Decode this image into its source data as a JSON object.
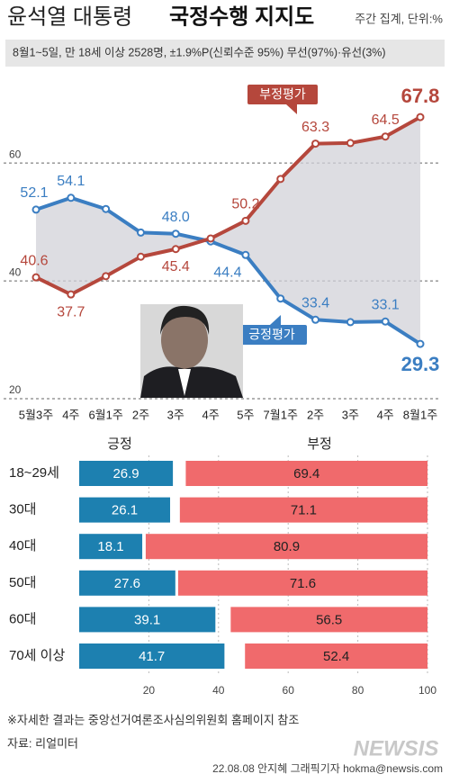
{
  "header": {
    "title_regular": "윤석열 대통령",
    "title_bold": "국정수행 지지도",
    "unit_note": "주간 집계, 단위:%",
    "subtitle": "8월1~5일, 만 18세 이상 2528명, ±1.9%P(신뢰수준 95%) 무선(97%)·유선(3%)"
  },
  "chart_data": [
    {
      "type": "line",
      "categories": [
        "5월3주",
        "4주",
        "6월1주",
        "2주",
        "3주",
        "4주",
        "5주",
        "7월1주",
        "2주",
        "3주",
        "4주",
        "8월1주"
      ],
      "series": [
        {
          "name": "긍정평가",
          "color": "#3b7ec2",
          "values": [
            52.1,
            54.1,
            52.2,
            48.2,
            48.0,
            46.7,
            44.4,
            37.0,
            33.4,
            33.0,
            33.1,
            29.3
          ],
          "value_labels": [
            "52.1",
            "54.1",
            null,
            null,
            "48.0",
            null,
            "44.4",
            null,
            "33.4",
            null,
            "33.1",
            "29.3"
          ]
        },
        {
          "name": "부정평가",
          "color": "#b5473c",
          "values": [
            40.6,
            37.7,
            40.8,
            44.1,
            45.4,
            47.2,
            50.2,
            57.3,
            63.3,
            63.4,
            64.5,
            67.8
          ],
          "value_labels": [
            "40.6",
            "37.7",
            null,
            null,
            "45.4",
            null,
            "50.2",
            null,
            "63.3",
            null,
            "64.5",
            "67.8"
          ]
        }
      ],
      "ylim": [
        20,
        75
      ],
      "yticks": [
        20,
        40,
        60
      ],
      "grid": true
    },
    {
      "type": "stacked_bar_horizontal",
      "categories": [
        "18~29세",
        "30대",
        "40대",
        "50대",
        "60대",
        "70세 이상"
      ],
      "series": [
        {
          "name": "긍정",
          "color": "#1d80b0",
          "values": [
            26.9,
            26.1,
            18.1,
            27.6,
            39.1,
            41.7
          ]
        },
        {
          "name": "부정",
          "color": "#f06a6c",
          "values": [
            69.4,
            71.1,
            80.9,
            71.6,
            56.5,
            52.4
          ]
        }
      ],
      "xlim": [
        0,
        100
      ],
      "xticks": [
        20,
        40,
        60,
        80,
        100
      ],
      "grid": true
    }
  ],
  "footer": {
    "note": "※자세한 결과는 중앙선거여론조사심의위원회 홈페이지 참조",
    "source": "자료: 리얼미터",
    "credit": "22.08.08 안지혜 그래픽기자 hokma@newsis.com",
    "watermark": "NEWSIS"
  }
}
